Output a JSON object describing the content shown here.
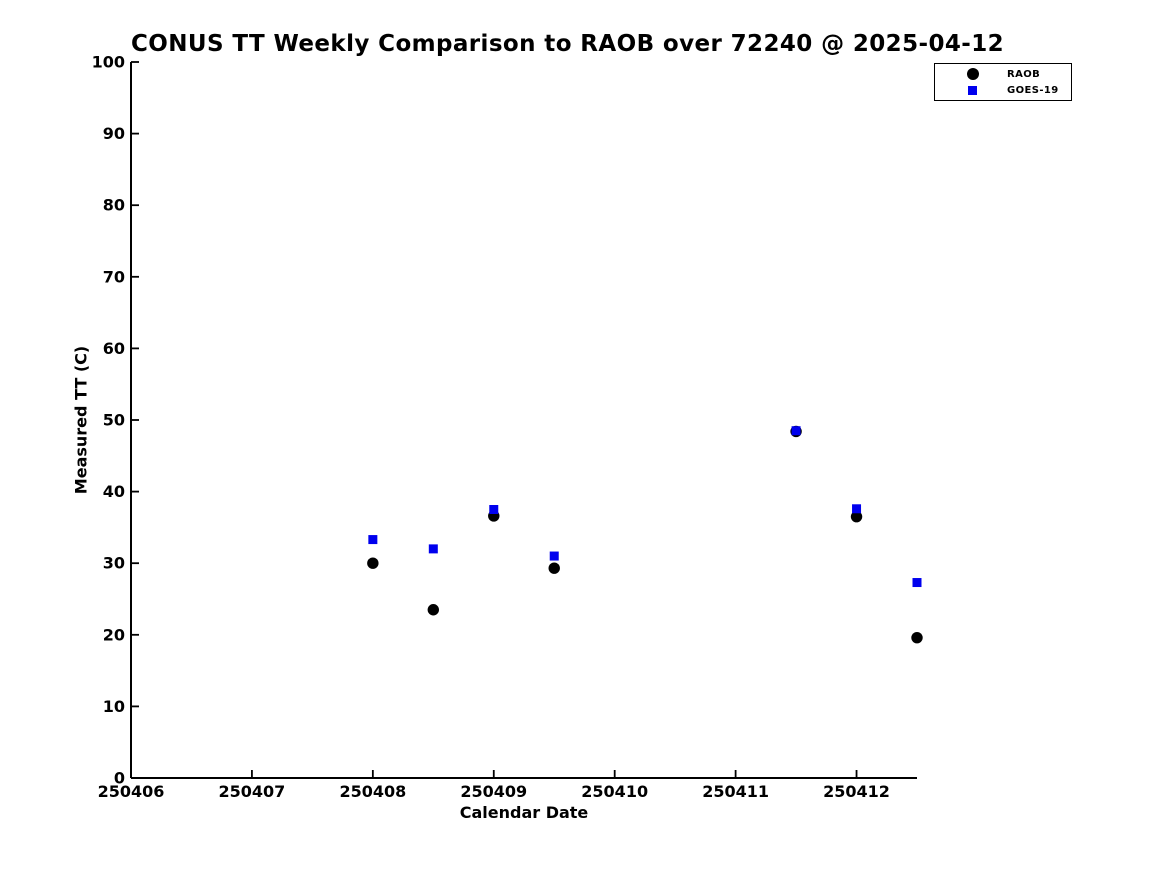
{
  "chart_data": {
    "type": "scatter",
    "title": "CONUS TT Weekly Comparison to RAOB over 72240 @ 2025-04-12",
    "xlabel": "Calendar Date",
    "ylabel": "Measured TT (C)",
    "xlim": [
      250406,
      250412.5
    ],
    "ylim": [
      0,
      100
    ],
    "x_ticks": [
      250406,
      250407,
      250408,
      250409,
      250410,
      250411,
      250412
    ],
    "y_ticks": [
      0,
      10,
      20,
      30,
      40,
      50,
      60,
      70,
      80,
      90,
      100
    ],
    "grid": false,
    "background": "#ffffff",
    "axis_color": "#000000",
    "legend_position": "top-right",
    "series": [
      {
        "name": "RAOB",
        "marker": "circle",
        "color": "#000000",
        "x": [
          250408.0,
          250408.5,
          250409.0,
          250409.5,
          250411.5,
          250412.0,
          250412.5
        ],
        "y": [
          30.0,
          23.5,
          36.6,
          29.3,
          48.4,
          36.5,
          19.6
        ]
      },
      {
        "name": "GOES-19",
        "marker": "square",
        "color": "#0000ee",
        "x": [
          250408.0,
          250408.5,
          250409.0,
          250409.5,
          250411.5,
          250412.0,
          250412.5
        ],
        "y": [
          33.3,
          32.0,
          37.5,
          31.0,
          48.5,
          37.6,
          27.3
        ]
      }
    ]
  }
}
